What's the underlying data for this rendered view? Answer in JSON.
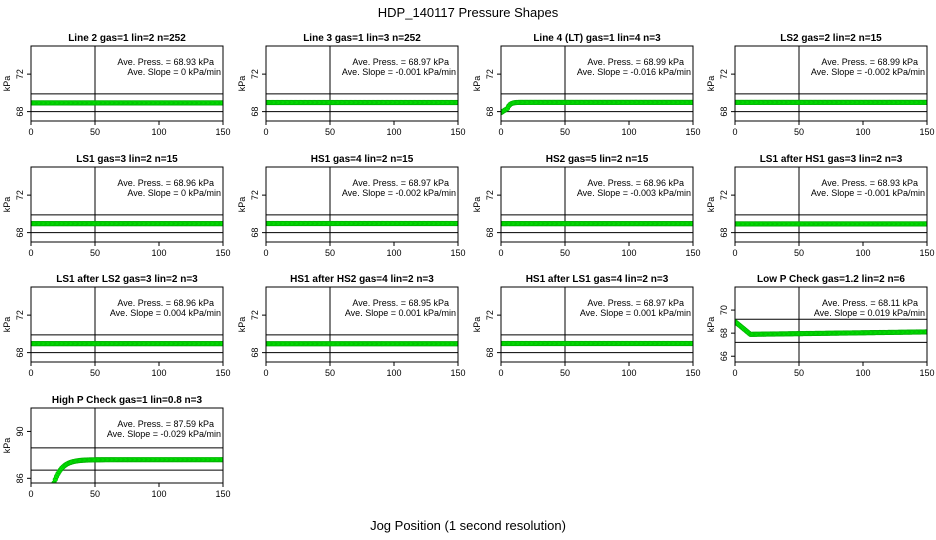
{
  "title": "HDP_140117  Pressure Shapes",
  "xlabel": "Jog Position (1 second resolution)",
  "chart_data": [
    {
      "type": "scatter",
      "title": "Line 2 gas=1 lin=2 n=252",
      "ylabel": "kPa",
      "xlim": [
        0,
        150
      ],
      "ylim": [
        67,
        75
      ],
      "yticks": [
        68,
        72
      ],
      "xticks": [
        0,
        50,
        100,
        150
      ],
      "hlines": [
        68.0,
        69.9
      ],
      "vline": 50,
      "ave_press": "Ave. Press. = 68.93 kPa",
      "ave_slope": "Ave. Slope = 0 kPa/min",
      "shape": "flat",
      "level": 68.93
    },
    {
      "type": "scatter",
      "title": "Line 3 gas=1 lin=3 n=252",
      "ylabel": "kPa",
      "xlim": [
        0,
        150
      ],
      "ylim": [
        67,
        75
      ],
      "yticks": [
        68,
        72
      ],
      "xticks": [
        0,
        50,
        100,
        150
      ],
      "hlines": [
        68.0,
        69.9
      ],
      "vline": 50,
      "ave_press": "Ave. Press. = 68.97 kPa",
      "ave_slope": "Ave. Slope = -0.001 kPa/min",
      "shape": "flat",
      "level": 68.97
    },
    {
      "type": "scatter",
      "title": "Line 4 (LT) gas=1 lin=4 n=3",
      "ylabel": "kPa",
      "xlim": [
        0,
        150
      ],
      "ylim": [
        67,
        75
      ],
      "yticks": [
        68,
        72
      ],
      "xticks": [
        0,
        50,
        100,
        150
      ],
      "hlines": [
        68.0,
        69.9
      ],
      "vline": 50,
      "ave_press": "Ave. Press. = 68.99 kPa",
      "ave_slope": "Ave. Slope = -0.016 kPa/min",
      "shape": "risefast",
      "level": 68.99,
      "start": 67.9
    },
    {
      "type": "scatter",
      "title": "LS2 gas=2 lin=2 n=15",
      "ylabel": "kPa",
      "xlim": [
        0,
        150
      ],
      "ylim": [
        67,
        75
      ],
      "yticks": [
        68,
        72
      ],
      "xticks": [
        0,
        50,
        100,
        150
      ],
      "hlines": [
        68.0,
        69.9
      ],
      "vline": 50,
      "ave_press": "Ave. Press. = 68.99 kPa",
      "ave_slope": "Ave. Slope = -0.002 kPa/min",
      "shape": "flat",
      "level": 68.99
    },
    {
      "type": "scatter",
      "title": "LS1 gas=3 lin=2 n=15",
      "ylabel": "kPa",
      "xlim": [
        0,
        150
      ],
      "ylim": [
        67,
        75
      ],
      "yticks": [
        68,
        72
      ],
      "xticks": [
        0,
        50,
        100,
        150
      ],
      "hlines": [
        68.0,
        69.9
      ],
      "vline": 50,
      "ave_press": "Ave. Press. = 68.96 kPa",
      "ave_slope": "Ave. Slope = 0 kPa/min",
      "shape": "flat",
      "level": 68.96
    },
    {
      "type": "scatter",
      "title": "HS1 gas=4 lin=2 n=15",
      "ylabel": "kPa",
      "xlim": [
        0,
        150
      ],
      "ylim": [
        67,
        75
      ],
      "yticks": [
        68,
        72
      ],
      "xticks": [
        0,
        50,
        100,
        150
      ],
      "hlines": [
        68.0,
        69.9
      ],
      "vline": 50,
      "ave_press": "Ave. Press. = 68.97 kPa",
      "ave_slope": "Ave. Slope = -0.002 kPa/min",
      "shape": "flat",
      "level": 68.97
    },
    {
      "type": "scatter",
      "title": "HS2 gas=5 lin=2 n=15",
      "ylabel": "kPa",
      "xlim": [
        0,
        150
      ],
      "ylim": [
        67,
        75
      ],
      "yticks": [
        68,
        72
      ],
      "xticks": [
        0,
        50,
        100,
        150
      ],
      "hlines": [
        68.0,
        69.9
      ],
      "vline": 50,
      "ave_press": "Ave. Press. = 68.96 kPa",
      "ave_slope": "Ave. Slope = -0.003 kPa/min",
      "shape": "flat",
      "level": 68.96
    },
    {
      "type": "scatter",
      "title": "LS1 after HS1 gas=3 lin=2 n=3",
      "ylabel": "kPa",
      "xlim": [
        0,
        150
      ],
      "ylim": [
        67,
        75
      ],
      "yticks": [
        68,
        72
      ],
      "xticks": [
        0,
        50,
        100,
        150
      ],
      "hlines": [
        68.0,
        69.9
      ],
      "vline": 50,
      "ave_press": "Ave. Press. = 68.93 kPa",
      "ave_slope": "Ave. Slope = -0.001 kPa/min",
      "shape": "flat",
      "level": 68.93
    },
    {
      "type": "scatter",
      "title": "LS1 after LS2 gas=3 lin=2 n=3",
      "ylabel": "kPa",
      "xlim": [
        0,
        150
      ],
      "ylim": [
        67,
        75
      ],
      "yticks": [
        68,
        72
      ],
      "xticks": [
        0,
        50,
        100,
        150
      ],
      "hlines": [
        68.0,
        69.9
      ],
      "vline": 50,
      "ave_press": "Ave. Press. = 68.96 kPa",
      "ave_slope": "Ave. Slope = 0.004 kPa/min",
      "shape": "flat",
      "level": 68.96
    },
    {
      "type": "scatter",
      "title": "HS1 after HS2 gas=4 lin=2 n=3",
      "ylabel": "kPa",
      "xlim": [
        0,
        150
      ],
      "ylim": [
        67,
        75
      ],
      "yticks": [
        68,
        72
      ],
      "xticks": [
        0,
        50,
        100,
        150
      ],
      "hlines": [
        68.0,
        69.9
      ],
      "vline": 50,
      "ave_press": "Ave. Press. = 68.95 kPa",
      "ave_slope": "Ave. Slope = 0.001 kPa/min",
      "shape": "flat",
      "level": 68.95
    },
    {
      "type": "scatter",
      "title": "HS1 after LS1 gas=4 lin=2 n=3",
      "ylabel": "kPa",
      "xlim": [
        0,
        150
      ],
      "ylim": [
        67,
        75
      ],
      "yticks": [
        68,
        72
      ],
      "xticks": [
        0,
        50,
        100,
        150
      ],
      "hlines": [
        68.0,
        69.9
      ],
      "vline": 50,
      "ave_press": "Ave. Press. = 68.97 kPa",
      "ave_slope": "Ave. Slope = 0.001 kPa/min",
      "shape": "flat",
      "level": 68.97
    },
    {
      "type": "scatter",
      "title": "Low P Check gas=1.2 lin=2 n=6",
      "ylabel": "kPa",
      "xlim": [
        0,
        150
      ],
      "ylim": [
        65.5,
        72
      ],
      "yticks": [
        66,
        68,
        70
      ],
      "xticks": [
        0,
        50,
        100,
        150
      ],
      "hlines": [
        67.2,
        69.2
      ],
      "vline": 50,
      "ave_press": "Ave. Press. = 68.11 kPa",
      "ave_slope": "Ave. Slope = 0.019 kPa/min",
      "shape": "dip",
      "level": 68.11,
      "start": 69.0,
      "low": 67.9
    },
    {
      "type": "scatter",
      "title": "High P Check gas=1 lin=0.8 n=3",
      "ylabel": "kPa",
      "xlim": [
        0,
        150
      ],
      "ylim": [
        85.6,
        92.0
      ],
      "yticks": [
        86,
        90
      ],
      "xticks": [
        0,
        50,
        100,
        150
      ],
      "hlines": [
        86.7,
        88.6
      ],
      "vline": 50,
      "ave_press": "Ave. Press. = 87.59 kPa",
      "ave_slope": "Ave. Slope = -0.029 kPa/min",
      "shape": "rise",
      "level": 87.59,
      "start": 85.6
    }
  ]
}
